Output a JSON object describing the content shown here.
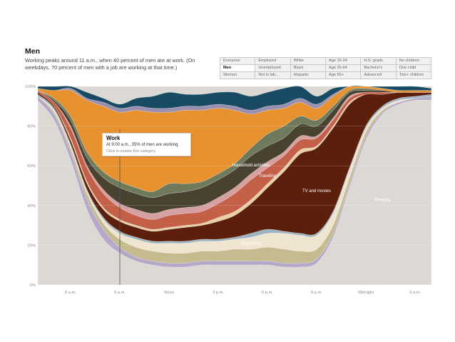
{
  "header": {
    "title": "Men",
    "subtitle": "Working peaks around 11 a.m., when 40 percent of men are at work. (On weekdays, 70 percent of men with a job are working at that time.)"
  },
  "filters": [
    [
      "Everyone",
      "Employed",
      "White",
      "Age 15-24",
      "H.S. grads",
      "No children"
    ],
    [
      "Men",
      "Unemployed",
      "Black",
      "Age 25-64",
      "Bachelor's",
      "One child"
    ],
    [
      "Women",
      "Not in lab...",
      "Hispanic",
      "Age 65+",
      "Advanced",
      "Two+ children"
    ]
  ],
  "active_filter": "Men",
  "tooltip": {
    "title": "Work",
    "text": "At 9:00 a.m., 35% of men are working.",
    "hint": "Click to isolate this category"
  },
  "chart_data": {
    "type": "area",
    "stacked": true,
    "x": [
      "4 a.m.",
      "5 a.m.",
      "6 a.m.",
      "7 a.m.",
      "8 a.m.",
      "9 a.m.",
      "10 a.m.",
      "11 a.m.",
      "Noon",
      "1 p.m.",
      "2 p.m.",
      "3 p.m.",
      "4 p.m.",
      "5 p.m.",
      "6 p.m.",
      "7 p.m.",
      "8 p.m.",
      "9 p.m.",
      "10 p.m.",
      "11 p.m.",
      "Midnight",
      "1 a.m.",
      "2 a.m.",
      "3 a.m.",
      "4 a.m."
    ],
    "x_ticks": [
      "6 a.m.",
      "9 a.m.",
      "Noon",
      "3 p.m.",
      "6 p.m.",
      "9 p.m.",
      "Midnight",
      "3 a.m."
    ],
    "y_ticks": [
      "0%",
      "20%",
      "40%",
      "60%",
      "80%",
      "100%"
    ],
    "ylim": [
      0,
      100
    ],
    "grid": true,
    "highlight_x": "9 a.m.",
    "series": [
      {
        "name": "Sleeping",
        "color": "#dcd9d4",
        "values": [
          93,
          83,
          63,
          38,
          23,
          16,
          12,
          10,
          9,
          9,
          10,
          10,
          10,
          10,
          10,
          9,
          9,
          11,
          24,
          49,
          73,
          86,
          91,
          93,
          93
        ]
      },
      {
        "key": "personal_care",
        "color": "#b6a8c9",
        "values": [
          2,
          3,
          4,
          5,
          5,
          3,
          2,
          2,
          2,
          2,
          2,
          2,
          2,
          2,
          2,
          2,
          2,
          2,
          2,
          2,
          2,
          1,
          1,
          1,
          2
        ]
      },
      {
        "key": "leisure",
        "color": "#c6bb8f",
        "values": [
          0,
          1,
          2,
          3,
          3,
          4,
          5,
          5,
          5,
          5,
          5,
          5,
          6,
          6,
          7,
          7,
          6,
          5,
          4,
          3,
          2,
          1,
          0,
          0,
          0
        ]
      },
      {
        "name": "Socializing",
        "color": "#efe4cf",
        "values": [
          0,
          1,
          1,
          1,
          2,
          3,
          4,
          4,
          5,
          5,
          5,
          5,
          5,
          6,
          7,
          8,
          8,
          7,
          6,
          4,
          2,
          1,
          1,
          0,
          0
        ]
      },
      {
        "key": "education",
        "color": "#9cb3c2",
        "values": [
          1,
          1,
          1,
          1,
          1,
          1,
          1,
          1,
          1,
          1,
          1,
          1,
          1,
          2,
          2,
          1,
          1,
          1,
          1,
          1,
          1,
          1,
          1,
          1,
          1
        ]
      },
      {
        "name": "TV and movies",
        "color": "#5c1f0b",
        "values": [
          1,
          1,
          2,
          3,
          4,
          5,
          5,
          5,
          6,
          7,
          7,
          9,
          11,
          15,
          21,
          30,
          40,
          43,
          42,
          32,
          16,
          6,
          3,
          2,
          1
        ]
      },
      {
        "key": "sports",
        "color": "#e8cfa8",
        "values": [
          0,
          0,
          1,
          1,
          1,
          1,
          1,
          1,
          1,
          1,
          1,
          2,
          2,
          2,
          2,
          2,
          2,
          1,
          1,
          1,
          0,
          0,
          0,
          0,
          0
        ]
      },
      {
        "name": "Traveling",
        "color": "#c45f48",
        "values": [
          1,
          2,
          5,
          7,
          7,
          6,
          5,
          5,
          6,
          6,
          6,
          7,
          9,
          10,
          8,
          6,
          5,
          4,
          3,
          2,
          1,
          1,
          0,
          0,
          0
        ]
      },
      {
        "key": "purchases",
        "color": "#d6a0a0",
        "values": [
          0,
          0,
          1,
          1,
          2,
          2,
          3,
          3,
          3,
          3,
          3,
          3,
          3,
          3,
          3,
          2,
          2,
          1,
          1,
          1,
          0,
          0,
          0,
          0,
          0
        ]
      },
      {
        "name": "Household activities",
        "color": "#4a4230",
        "values": [
          0,
          1,
          3,
          4,
          6,
          8,
          8,
          8,
          8,
          8,
          9,
          9,
          9,
          9,
          8,
          7,
          6,
          5,
          4,
          2,
          1,
          1,
          0,
          0,
          0
        ]
      },
      {
        "key": "eating",
        "color": "#6f7a5c",
        "values": [
          0,
          1,
          2,
          3,
          3,
          3,
          3,
          3,
          5,
          4,
          3,
          3,
          3,
          4,
          6,
          6,
          4,
          3,
          2,
          1,
          1,
          0,
          0,
          0,
          0
        ]
      },
      {
        "name": "Work",
        "color": "#e7922f",
        "values": [
          1,
          4,
          13,
          26,
          33,
          35,
          39,
          40,
          36,
          37,
          36,
          33,
          27,
          17,
          12,
          9,
          7,
          6,
          5,
          4,
          3,
          1,
          1,
          1,
          1
        ]
      },
      {
        "key": "civic",
        "color": "#9b8fb0",
        "values": [
          0,
          0,
          1,
          1,
          2,
          2,
          2,
          2,
          2,
          2,
          2,
          2,
          2,
          2,
          2,
          2,
          2,
          2,
          1,
          1,
          0,
          0,
          0,
          0,
          0
        ]
      },
      {
        "key": "other",
        "color": "#184b63",
        "values": [
          1,
          2,
          2,
          3,
          2,
          2,
          4,
          6,
          8,
          6,
          6,
          6,
          7,
          7,
          7,
          8,
          7,
          4,
          3,
          3,
          2,
          1,
          2,
          2,
          1
        ]
      }
    ]
  }
}
